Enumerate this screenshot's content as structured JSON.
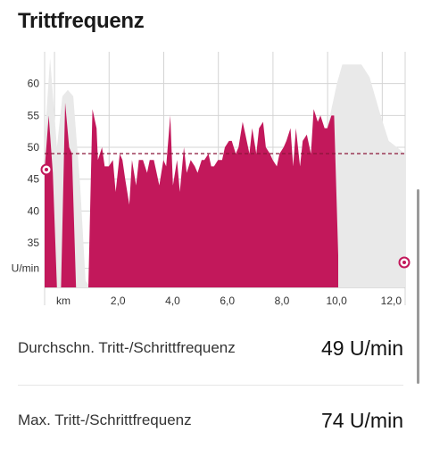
{
  "header": {
    "title": "Trittfrequenz"
  },
  "chart_data": {
    "type": "area",
    "x_tick_labels": [
      "km",
      "2,0",
      "4,0",
      "6,0",
      "8,0",
      "10,0",
      "12,0"
    ],
    "x_tick_values": [
      0,
      2,
      4,
      6,
      8,
      10,
      12
    ],
    "y_tick_labels": [
      "60",
      "55",
      "50",
      "45",
      "40",
      "35",
      "U/min"
    ],
    "y_tick_values": [
      60,
      55,
      50,
      45,
      40,
      35,
      31
    ],
    "ylim": [
      28,
      65
    ],
    "xlim": [
      -0.1,
      13.1
    ],
    "grid": true,
    "average_line": 49,
    "series": [
      {
        "values": [
          [
            -0.1,
            46.5
          ],
          [
            0.05,
            55
          ],
          [
            0.2,
            46
          ],
          [
            0.35,
            28
          ],
          [
            0.5,
            28
          ],
          [
            0.65,
            57
          ],
          [
            0.8,
            50
          ],
          [
            0.9,
            49
          ],
          [
            1.05,
            28
          ],
          [
            1.5,
            28
          ],
          [
            1.65,
            56
          ],
          [
            1.8,
            53
          ],
          [
            1.85,
            48
          ],
          [
            2.0,
            50
          ],
          [
            2.1,
            47
          ],
          [
            2.25,
            47
          ],
          [
            2.4,
            48
          ],
          [
            2.5,
            43
          ],
          [
            2.65,
            49
          ],
          [
            2.75,
            48
          ],
          [
            2.85,
            45
          ],
          [
            3.0,
            41
          ],
          [
            3.1,
            48
          ],
          [
            3.25,
            44
          ],
          [
            3.35,
            48
          ],
          [
            3.5,
            48
          ],
          [
            3.65,
            46
          ],
          [
            3.75,
            48
          ],
          [
            3.9,
            48
          ],
          [
            4.0,
            46
          ],
          [
            4.1,
            44
          ],
          [
            4.25,
            48
          ],
          [
            4.35,
            47
          ],
          [
            4.5,
            55
          ],
          [
            4.6,
            44
          ],
          [
            4.75,
            48
          ],
          [
            4.85,
            43
          ],
          [
            5.0,
            50
          ],
          [
            5.1,
            46
          ],
          [
            5.25,
            48
          ],
          [
            5.4,
            47
          ],
          [
            5.5,
            46
          ],
          [
            5.65,
            48
          ],
          [
            5.75,
            48
          ],
          [
            5.9,
            49
          ],
          [
            6.0,
            47
          ],
          [
            6.1,
            47
          ],
          [
            6.25,
            48
          ],
          [
            6.4,
            48
          ],
          [
            6.5,
            50
          ],
          [
            6.65,
            51
          ],
          [
            6.75,
            51
          ],
          [
            6.9,
            49
          ],
          [
            7.0,
            50
          ],
          [
            7.15,
            54
          ],
          [
            7.25,
            52
          ],
          [
            7.4,
            49
          ],
          [
            7.5,
            53
          ],
          [
            7.65,
            49
          ],
          [
            7.75,
            53
          ],
          [
            7.9,
            54
          ],
          [
            8.0,
            50
          ],
          [
            8.15,
            49
          ],
          [
            8.25,
            48
          ],
          [
            8.4,
            47
          ],
          [
            8.5,
            49
          ],
          [
            8.65,
            50
          ],
          [
            8.75,
            51
          ],
          [
            8.9,
            53
          ],
          [
            9.0,
            47
          ],
          [
            9.1,
            53
          ],
          [
            9.25,
            47
          ],
          [
            9.35,
            51
          ],
          [
            9.5,
            52
          ],
          [
            9.65,
            49
          ],
          [
            9.75,
            56
          ],
          [
            9.9,
            54
          ],
          [
            10.0,
            55
          ],
          [
            10.15,
            53
          ],
          [
            10.25,
            53
          ],
          [
            10.4,
            55
          ],
          [
            10.5,
            55
          ],
          [
            10.65,
            33
          ]
        ]
      }
    ],
    "background_series": [
      [
        -0.1,
        51
      ],
      [
        0.1,
        64
      ],
      [
        0.35,
        50
      ],
      [
        0.55,
        58
      ],
      [
        0.75,
        59
      ],
      [
        0.95,
        58
      ],
      [
        1.2,
        44
      ],
      [
        1.4,
        29
      ],
      [
        1.6,
        28
      ],
      [
        8.6,
        28
      ],
      [
        9.0,
        33
      ],
      [
        9.3,
        38
      ],
      [
        9.7,
        44
      ],
      [
        10.0,
        49
      ],
      [
        10.2,
        52
      ],
      [
        10.4,
        56
      ],
      [
        10.6,
        60
      ],
      [
        10.8,
        63
      ],
      [
        11.2,
        63
      ],
      [
        11.5,
        63
      ],
      [
        11.8,
        61
      ],
      [
        12.0,
        58
      ],
      [
        12.2,
        55
      ],
      [
        12.5,
        51
      ],
      [
        12.8,
        50
      ],
      [
        13.1,
        49
      ]
    ],
    "colors": {
      "series": "#c2185b",
      "background": "#e9e9e9",
      "average_line": "#8a1538",
      "grid": "#d4d4d4"
    }
  },
  "stats": [
    {
      "label": "Durchschn. Tritt-/Schrittfrequenz",
      "value": "49 U/min"
    },
    {
      "label": "Max. Tritt-/Schrittfrequenz",
      "value": "74 U/min"
    }
  ]
}
